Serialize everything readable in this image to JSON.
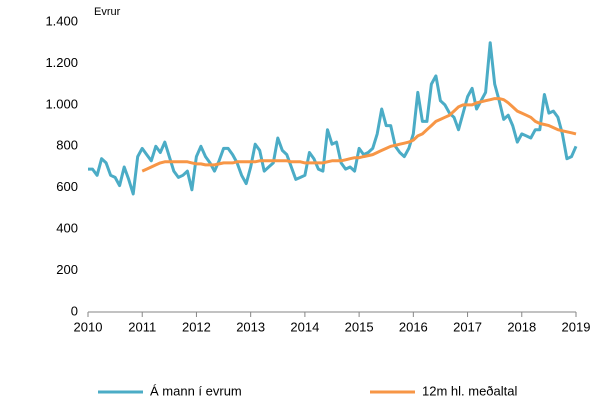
{
  "chart_data": {
    "type": "line",
    "y_label": "Evrur",
    "x": [
      2010,
      2010.083,
      2010.167,
      2010.25,
      2010.333,
      2010.417,
      2010.5,
      2010.583,
      2010.667,
      2010.75,
      2010.833,
      2010.917,
      2011,
      2011.083,
      2011.167,
      2011.25,
      2011.333,
      2011.417,
      2011.5,
      2011.583,
      2011.667,
      2011.75,
      2011.833,
      2011.917,
      2012,
      2012.083,
      2012.167,
      2012.25,
      2012.333,
      2012.417,
      2012.5,
      2012.583,
      2012.667,
      2012.75,
      2012.833,
      2012.917,
      2013,
      2013.083,
      2013.167,
      2013.25,
      2013.333,
      2013.417,
      2013.5,
      2013.583,
      2013.667,
      2013.75,
      2013.833,
      2013.917,
      2014,
      2014.083,
      2014.167,
      2014.25,
      2014.333,
      2014.417,
      2014.5,
      2014.583,
      2014.667,
      2014.75,
      2014.833,
      2014.917,
      2015,
      2015.083,
      2015.167,
      2015.25,
      2015.333,
      2015.417,
      2015.5,
      2015.583,
      2015.667,
      2015.75,
      2015.833,
      2015.917,
      2016,
      2016.083,
      2016.167,
      2016.25,
      2016.333,
      2016.417,
      2016.5,
      2016.583,
      2016.667,
      2016.75,
      2016.833,
      2016.917,
      2017,
      2017.083,
      2017.167,
      2017.25,
      2017.333,
      2017.417,
      2017.5,
      2017.583,
      2017.667,
      2017.75,
      2017.833,
      2017.917,
      2018,
      2018.083,
      2018.167,
      2018.25,
      2018.333,
      2018.417,
      2018.5,
      2018.583,
      2018.667,
      2018.75,
      2018.833,
      2018.917,
      2019
    ],
    "series": [
      {
        "name": "Á mann í evrum",
        "color": "#4bacc6",
        "values": [
          690,
          690,
          660,
          740,
          720,
          660,
          650,
          610,
          700,
          640,
          570,
          750,
          790,
          760,
          730,
          800,
          770,
          820,
          750,
          680,
          650,
          660,
          680,
          590,
          750,
          800,
          750,
          720,
          680,
          730,
          790,
          790,
          760,
          720,
          660,
          620,
          700,
          810,
          780,
          680,
          700,
          720,
          840,
          780,
          760,
          700,
          640,
          650,
          660,
          770,
          740,
          690,
          680,
          880,
          810,
          820,
          720,
          690,
          700,
          680,
          790,
          760,
          770,
          790,
          860,
          980,
          900,
          900,
          800,
          770,
          750,
          790,
          860,
          1060,
          920,
          920,
          1100,
          1140,
          1020,
          1000,
          960,
          940,
          880,
          960,
          1040,
          1080,
          980,
          1020,
          1060,
          1300,
          1100,
          1020,
          930,
          950,
          900,
          820,
          860,
          850,
          840,
          880,
          880,
          1050,
          960,
          970,
          940,
          860,
          740,
          750,
          800
        ]
      },
      {
        "name": "12m hl. meðaltal",
        "color": "#f79646",
        "values": [
          null,
          null,
          null,
          null,
          null,
          null,
          null,
          null,
          null,
          null,
          null,
          null,
          680,
          690,
          700,
          710,
          720,
          725,
          725,
          725,
          725,
          725,
          725,
          720,
          715,
          715,
          710,
          710,
          710,
          715,
          720,
          720,
          720,
          725,
          725,
          725,
          725,
          725,
          730,
          730,
          730,
          730,
          730,
          730,
          730,
          725,
          725,
          725,
          720,
          720,
          720,
          720,
          720,
          725,
          730,
          730,
          730,
          735,
          740,
          745,
          745,
          750,
          755,
          760,
          770,
          780,
          790,
          800,
          805,
          810,
          815,
          820,
          830,
          850,
          860,
          880,
          900,
          920,
          930,
          940,
          950,
          970,
          990,
          1000,
          1000,
          1000,
          1010,
          1015,
          1020,
          1025,
          1030,
          1030,
          1025,
          1010,
          990,
          970,
          960,
          950,
          940,
          920,
          910,
          905,
          900,
          890,
          880,
          875,
          870,
          865,
          860
        ]
      }
    ],
    "xlim": [
      2010,
      2019
    ],
    "xticks": [
      2010,
      2011,
      2012,
      2013,
      2014,
      2015,
      2016,
      2017,
      2018,
      2019
    ],
    "ylim": [
      0,
      1400
    ],
    "yticks": [
      0,
      200,
      400,
      600,
      800,
      {
        "value": 1000,
        "label": "1.000"
      },
      {
        "value": 1200,
        "label": "1.200"
      },
      {
        "value": 1400,
        "label": "1.400"
      }
    ],
    "grid": false,
    "legend": "bottom"
  }
}
